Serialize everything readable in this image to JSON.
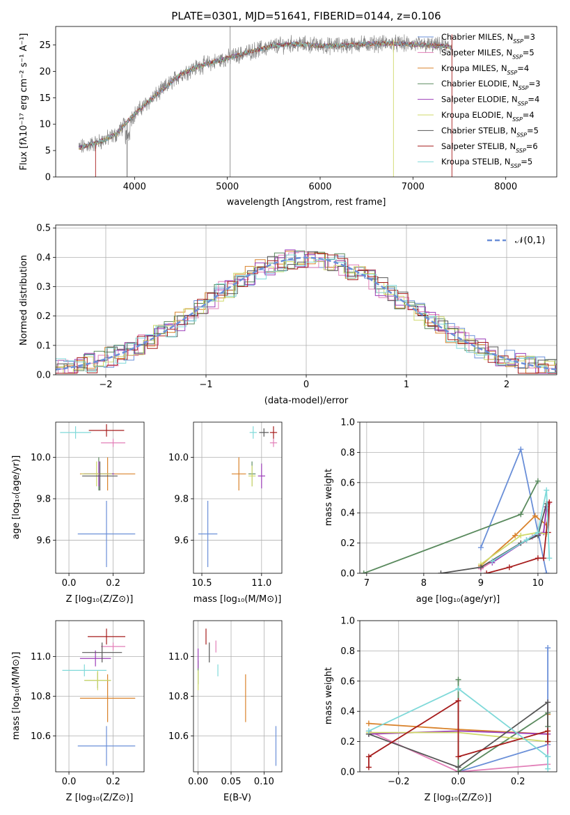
{
  "colors": {
    "grid": "#b0b0b0",
    "chabrier_miles": "#6a8fd8",
    "salpeter_miles": "#e27fb8",
    "kroupa_miles": "#d9822b",
    "chabrier_elodie": "#5a8a5e",
    "salpeter_elodie": "#9b3db8",
    "kroupa_elodie": "#cfd96a",
    "chabrier_stelib": "#555555",
    "salpeter_stelib": "#a61c1c",
    "kroupa_stelib": "#7fd9d9",
    "normal_curve": "#6a8fd8"
  },
  "chart_data": [
    {
      "id": "spectrum",
      "type": "line",
      "title": "PLATE=0301, MJD=51641, FIBERID=0144, z=0.106",
      "xlabel": "wavelength [Angstrom, rest frame]",
      "ylabel": "Flux [fλ10⁻¹⁷ erg cm⁻² s⁻¹ A⁻¹]",
      "xlim": [
        3150,
        8550
      ],
      "ylim": [
        0,
        28.5
      ],
      "xticks": [
        4000,
        5000,
        6000,
        7000,
        8000
      ],
      "yticks": [
        0,
        5,
        10,
        15,
        20,
        25
      ],
      "grid": false,
      "legend_position": "right",
      "legend": [
        "Chabrier MILES, N_SSP=3",
        "Salpeter MILES, N_SSP=5",
        "Kroupa MILES, N_SSP=4",
        "Chabrier ELODIE, N_SSP=3",
        "Salpeter ELODIE, N_SSP=4",
        "Kroupa ELODIE, N_SSP=4",
        "Chabrier STELIB, N_SSP=5",
        "Salpeter STELIB, N_SSP=6",
        "Kroupa STELIB, N_SSP=5"
      ],
      "continuum_x": [
        3400,
        3600,
        3800,
        3950,
        4100,
        4300,
        4500,
        4700,
        4900,
        5100,
        5300,
        5500,
        5700,
        5900,
        6100,
        6300,
        6500,
        6700,
        6900,
        7100,
        7300,
        7420
      ],
      "continuum_y": [
        5.5,
        6.5,
        8.0,
        11.0,
        13.5,
        16.5,
        19.5,
        21.0,
        22.0,
        23.0,
        24.0,
        24.8,
        25.2,
        25.0,
        24.8,
        25.0,
        25.2,
        25.3,
        25.2,
        25.0,
        24.8,
        24.6
      ]
    },
    {
      "id": "residuals",
      "type": "step",
      "xlabel": "(data-model)/error",
      "ylabel": "Normed distribution",
      "xlim": [
        -2.5,
        2.5
      ],
      "ylim": [
        0,
        0.51
      ],
      "xticks": [
        -2,
        -1,
        0,
        1,
        2
      ],
      "yticks": [
        0.0,
        0.1,
        0.2,
        0.3,
        0.4,
        0.5
      ],
      "grid": true,
      "legend": [
        "𝒩(0,1)"
      ],
      "legend_position": "top-right",
      "normal_mean": 0,
      "normal_sigma": 1
    },
    {
      "id": "age_vs_Z",
      "type": "errorbar",
      "xlabel": "Z [log₁₀(Z/Z⊙)]",
      "ylabel": "age  [log₁₀(age/yr)]",
      "xlim": [
        -0.06,
        0.34
      ],
      "ylim": [
        9.44,
        10.17
      ],
      "xticks": [
        0.0,
        0.2
      ],
      "yticks": [
        9.6,
        9.8,
        10.0
      ],
      "grid": true,
      "points": [
        {
          "c": "chabrier_miles",
          "x": 0.17,
          "xerr": 0.13,
          "y": 9.63,
          "yerr": 0.16
        },
        {
          "c": "salpeter_miles",
          "x": 0.2,
          "xerr": 0.055,
          "y": 10.07,
          "yerr": 0.02
        },
        {
          "c": "kroupa_miles",
          "x": 0.175,
          "xerr": 0.125,
          "y": 9.92,
          "yerr": 0.08
        },
        {
          "c": "chabrier_elodie",
          "x": 0.135,
          "xerr": 0.065,
          "y": 9.92,
          "yerr": 0.08
        },
        {
          "c": "salpeter_elodie",
          "x": 0.135,
          "xerr": 0.07,
          "y": 9.92,
          "yerr": 0.06
        },
        {
          "c": "kroupa_elodie",
          "x": 0.125,
          "xerr": 0.07,
          "y": 9.92,
          "yerr": 0.06
        },
        {
          "c": "chabrier_stelib",
          "x": 0.14,
          "xerr": 0.08,
          "y": 9.91,
          "yerr": 0.07
        },
        {
          "c": "salpeter_stelib",
          "x": 0.17,
          "xerr": 0.08,
          "y": 10.13,
          "yerr": 0.03
        },
        {
          "c": "kroupa_stelib",
          "x": 0.03,
          "xerr": 0.07,
          "y": 10.12,
          "yerr": 0.03
        }
      ]
    },
    {
      "id": "age_vs_mass",
      "type": "errorbar",
      "xlabel": "mass [log₁₀(M/M⊙)]",
      "ylabel": "",
      "xlim": [
        10.43,
        11.17
      ],
      "ylim": [
        9.44,
        10.17
      ],
      "xticks": [
        10.5,
        11.0
      ],
      "yticks": [
        9.6,
        9.8,
        10.0
      ],
      "grid": true,
      "points": [
        {
          "c": "chabrier_miles",
          "x": 10.55,
          "xerr": 0.08,
          "y": 9.63,
          "yerr": 0.16
        },
        {
          "c": "salpeter_miles",
          "x": 11.1,
          "xerr": 0.03,
          "y": 10.07,
          "yerr": 0.02
        },
        {
          "c": "kroupa_miles",
          "x": 10.81,
          "xerr": 0.06,
          "y": 9.92,
          "yerr": 0.08
        },
        {
          "c": "chabrier_elodie",
          "x": 10.92,
          "xerr": 0.03,
          "y": 9.92,
          "yerr": 0.06
        },
        {
          "c": "salpeter_elodie",
          "x": 11.0,
          "xerr": 0.03,
          "y": 9.91,
          "yerr": 0.06
        },
        {
          "c": "kroupa_elodie",
          "x": 10.92,
          "xerr": 0.03,
          "y": 9.91,
          "yerr": 0.05
        },
        {
          "c": "chabrier_stelib",
          "x": 11.02,
          "xerr": 0.04,
          "y": 10.12,
          "yerr": 0.02
        },
        {
          "c": "salpeter_stelib",
          "x": 11.1,
          "xerr": 0.03,
          "y": 10.12,
          "yerr": 0.03
        },
        {
          "c": "kroupa_stelib",
          "x": 10.93,
          "xerr": 0.03,
          "y": 10.12,
          "yerr": 0.03
        }
      ]
    },
    {
      "id": "weight_vs_age",
      "type": "line",
      "xlabel": "age  [log₁₀(age/yr)]",
      "ylabel": "mass weight",
      "xlim": [
        6.88,
        10.33
      ],
      "ylim": [
        0,
        1.0
      ],
      "xticks": [
        7,
        8,
        9,
        10
      ],
      "yticks": [
        0.0,
        0.2,
        0.4,
        0.6,
        0.8,
        1.0
      ],
      "grid": true,
      "series": [
        {
          "c": "chabrier_miles",
          "x": [
            9.0,
            9.7,
            10.15
          ],
          "y": [
            0.17,
            0.82,
            0.0
          ]
        },
        {
          "c": "salpeter_miles",
          "x": [
            9.0,
            9.9,
            10.1,
            10.15,
            10.18
          ],
          "y": [
            0.03,
            0.24,
            0.27,
            0.42,
            0.46
          ]
        },
        {
          "c": "kroupa_miles",
          "x": [
            9.0,
            9.6,
            9.95,
            10.15
          ],
          "y": [
            0.05,
            0.25,
            0.38,
            0.32
          ]
        },
        {
          "c": "chabrier_elodie",
          "x": [
            6.95,
            9.7,
            10.0
          ],
          "y": [
            0.0,
            0.39,
            0.61
          ]
        },
        {
          "c": "salpeter_elodie",
          "x": [
            9.2,
            9.8,
            10.1,
            10.15
          ],
          "y": [
            0.07,
            0.22,
            0.27,
            0.44
          ]
        },
        {
          "c": "kroupa_elodie",
          "x": [
            9.0,
            9.7,
            10.0,
            10.15
          ],
          "y": [
            0.06,
            0.25,
            0.27,
            0.26
          ]
        },
        {
          "c": "chabrier_stelib",
          "x": [
            8.3,
            9.0,
            9.7,
            10.0,
            10.15
          ],
          "y": [
            0.0,
            0.04,
            0.2,
            0.25,
            0.46
          ]
        },
        {
          "c": "salpeter_stelib",
          "x": [
            9.1,
            9.5,
            10.0,
            10.1,
            10.2,
            10.18
          ],
          "y": [
            0.0,
            0.04,
            0.1,
            0.1,
            0.47,
            0.27
          ]
        },
        {
          "c": "kroupa_stelib",
          "x": [
            9.2,
            9.8,
            10.0,
            10.15,
            10.2
          ],
          "y": [
            0.08,
            0.22,
            0.27,
            0.55,
            0.1
          ]
        }
      ]
    },
    {
      "id": "mass_vs_Z",
      "type": "errorbar",
      "xlabel": "Z [log₁₀(Z/Z⊙)]",
      "ylabel": "mass [log₁₀(M/M⊙)]",
      "xlim": [
        -0.06,
        0.34
      ],
      "ylim": [
        10.42,
        11.18
      ],
      "xticks": [
        0.0,
        0.2
      ],
      "yticks": [
        10.6,
        10.8,
        11.0
      ],
      "grid": true,
      "points": [
        {
          "c": "chabrier_miles",
          "x": 0.17,
          "xerr": 0.13,
          "y": 10.55,
          "yerr": 0.1
        },
        {
          "c": "salpeter_miles",
          "x": 0.2,
          "xerr": 0.055,
          "y": 11.05,
          "yerr": 0.02
        },
        {
          "c": "kroupa_miles",
          "x": 0.175,
          "xerr": 0.125,
          "y": 10.79,
          "yerr": 0.12
        },
        {
          "c": "chabrier_elodie",
          "x": 0.13,
          "xerr": 0.06,
          "y": 10.88,
          "yerr": 0.04
        },
        {
          "c": "salpeter_elodie",
          "x": 0.12,
          "xerr": 0.07,
          "y": 10.99,
          "yerr": 0.04
        },
        {
          "c": "kroupa_elodie",
          "x": 0.13,
          "xerr": 0.06,
          "y": 10.88,
          "yerr": 0.05
        },
        {
          "c": "chabrier_stelib",
          "x": 0.15,
          "xerr": 0.09,
          "y": 11.02,
          "yerr": 0.05
        },
        {
          "c": "salpeter_stelib",
          "x": 0.17,
          "xerr": 0.085,
          "y": 11.1,
          "yerr": 0.04
        },
        {
          "c": "kroupa_stelib",
          "x": 0.07,
          "xerr": 0.1,
          "y": 10.93,
          "yerr": 0.03
        }
      ]
    },
    {
      "id": "mass_vs_ebv",
      "type": "errorbar",
      "xlabel": "E(B-V)",
      "ylabel": "",
      "xlim": [
        -0.007,
        0.127
      ],
      "ylim": [
        10.42,
        11.18
      ],
      "xticks": [
        0.0,
        0.05,
        0.1
      ],
      "yticks": [
        10.6,
        10.8,
        11.0
      ],
      "grid": true,
      "points": [
        {
          "c": "chabrier_miles",
          "x": 0.118,
          "xerr": 0,
          "y": 10.55,
          "yerr": 0.1
        },
        {
          "c": "salpeter_miles",
          "x": 0.027,
          "xerr": 0,
          "y": 11.05,
          "yerr": 0.03
        },
        {
          "c": "kroupa_miles",
          "x": 0.072,
          "xerr": 0,
          "y": 10.79,
          "yerr": 0.12
        },
        {
          "c": "chabrier_elodie",
          "x": 0.0,
          "xerr": 0,
          "y": 10.92,
          "yerr": 0.06
        },
        {
          "c": "salpeter_elodie",
          "x": 0.0,
          "xerr": 0,
          "y": 10.99,
          "yerr": 0.05
        },
        {
          "c": "kroupa_elodie",
          "x": 0.0,
          "xerr": 0,
          "y": 10.88,
          "yerr": 0.05
        },
        {
          "c": "chabrier_stelib",
          "x": 0.017,
          "xerr": 0,
          "y": 11.02,
          "yerr": 0.05
        },
        {
          "c": "salpeter_stelib",
          "x": 0.012,
          "xerr": 0,
          "y": 11.1,
          "yerr": 0.04
        },
        {
          "c": "kroupa_stelib",
          "x": 0.03,
          "xerr": 0,
          "y": 10.93,
          "yerr": 0.03
        }
      ]
    },
    {
      "id": "weight_vs_Z",
      "type": "line",
      "xlabel": "Z [log₁₀(Z/Z⊙)]",
      "ylabel": "mass weight",
      "xlim": [
        -0.33,
        0.33
      ],
      "ylim": [
        0,
        1.0
      ],
      "xticks": [
        -0.2,
        0.0,
        0.2
      ],
      "yticks": [
        0.0,
        0.2,
        0.4,
        0.6,
        0.8,
        1.0
      ],
      "grid": true,
      "series": [
        {
          "c": "chabrier_miles",
          "x": [
            0.0,
            0.3,
            0.3,
            0.3
          ],
          "y": [
            0.0,
            0.18,
            0.82,
            0.1
          ]
        },
        {
          "c": "salpeter_miles",
          "x": [
            -0.3,
            0.0,
            0.3,
            0.3
          ],
          "y": [
            0.27,
            0.0,
            0.05,
            0.46
          ]
        },
        {
          "c": "kroupa_miles",
          "x": [
            -0.3,
            0.0,
            0.3,
            0.3
          ],
          "y": [
            0.32,
            0.28,
            0.25,
            0.38
          ]
        },
        {
          "c": "chabrier_elodie",
          "x": [
            0.0,
            0.0,
            0.3,
            0.3
          ],
          "y": [
            0.61,
            0.0,
            0.39,
            0.3
          ]
        },
        {
          "c": "salpeter_elodie",
          "x": [
            -0.3,
            0.0,
            0.3
          ],
          "y": [
            0.25,
            0.27,
            0.25
          ]
        },
        {
          "c": "kroupa_elodie",
          "x": [
            -0.3,
            0.0,
            0.3,
            0.3
          ],
          "y": [
            0.26,
            0.26,
            0.2,
            0.27
          ]
        },
        {
          "c": "chabrier_stelib",
          "x": [
            -0.3,
            0.0,
            0.3,
            0.3
          ],
          "y": [
            0.25,
            0.03,
            0.46,
            0.2
          ]
        },
        {
          "c": "salpeter_stelib",
          "x": [
            -0.3,
            -0.3,
            0.0,
            0.0,
            0.3,
            0.3
          ],
          "y": [
            0.03,
            0.1,
            0.47,
            0.1,
            0.27,
            0.2
          ]
        },
        {
          "c": "kroupa_stelib",
          "x": [
            -0.3,
            0.0,
            0.3,
            0.3
          ],
          "y": [
            0.27,
            0.55,
            0.1,
            0.02
          ]
        }
      ]
    }
  ]
}
